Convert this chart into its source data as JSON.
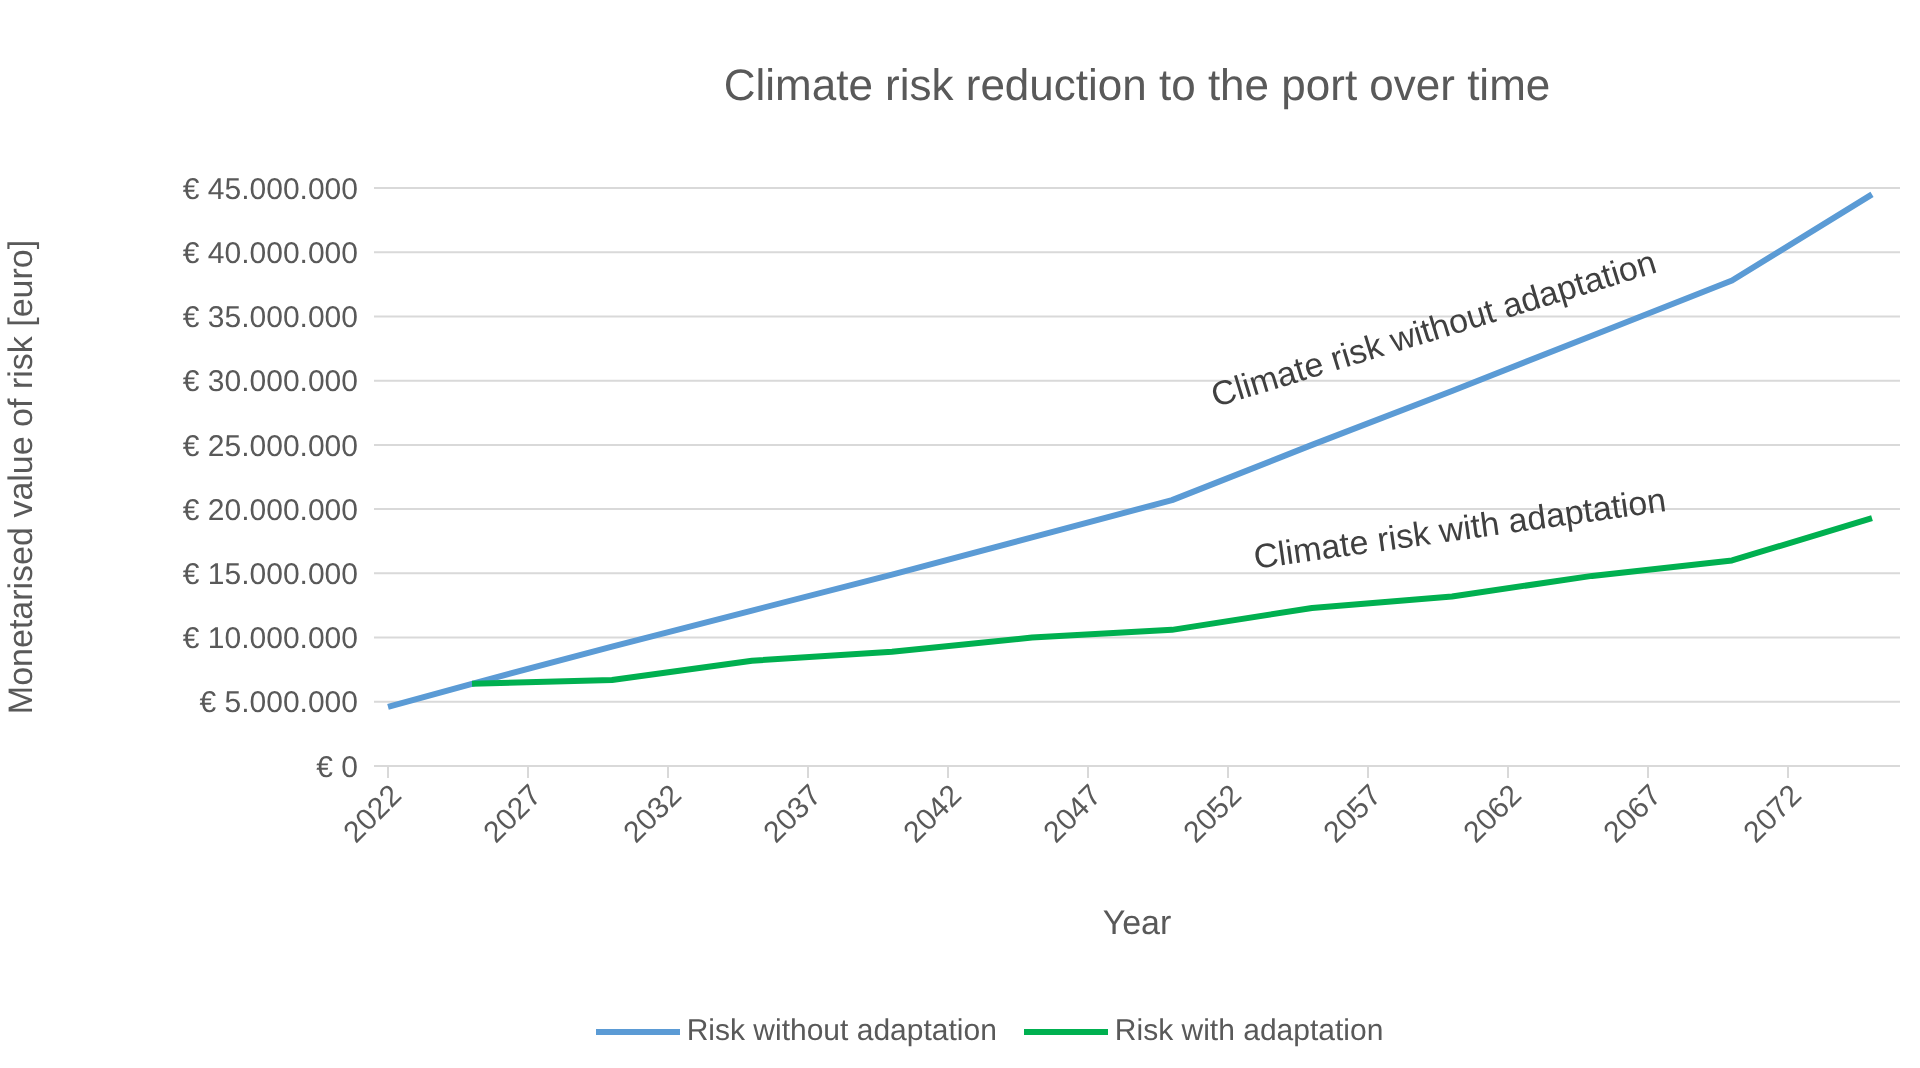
{
  "chart_data": {
    "type": "line",
    "title": "Climate risk reduction to the port over time",
    "xlabel": "Year",
    "ylabel": "Monetarised value of risk [euro]",
    "xlim": [
      2021.5,
      2076
    ],
    "xticks": [
      2022,
      2027,
      2032,
      2037,
      2042,
      2047,
      2052,
      2057,
      2062,
      2067,
      2072
    ],
    "ylim": [
      0,
      45000000
    ],
    "yticks": [
      {
        "value": 0,
        "label": "€ 0"
      },
      {
        "value": 5000000,
        "label": "€ 5.000.000"
      },
      {
        "value": 10000000,
        "label": "€ 10.000.000"
      },
      {
        "value": 15000000,
        "label": "€ 15.000.000"
      },
      {
        "value": 20000000,
        "label": "€ 20.000.000"
      },
      {
        "value": 25000000,
        "label": "€ 25.000.000"
      },
      {
        "value": 30000000,
        "label": "€ 30.000.000"
      },
      {
        "value": 35000000,
        "label": "€ 35.000.000"
      },
      {
        "value": 40000000,
        "label": "€ 40.000.000"
      },
      {
        "value": 45000000,
        "label": "€ 45.000.000"
      }
    ],
    "grid": "y",
    "legend": "bottom",
    "marker": "none",
    "line_style": "solid",
    "series": [
      {
        "name": "Risk without adaptation",
        "color": "#5b9bd5",
        "x": [
          2022,
          2025,
          2030,
          2035,
          2040,
          2045,
          2050,
          2055,
          2060,
          2065,
          2070,
          2075
        ],
        "values": [
          4600000,
          6400000,
          9300000,
          12100000,
          14900000,
          17800000,
          20700000,
          25000000,
          29200000,
          33500000,
          37800000,
          44500000
        ]
      },
      {
        "name": "Risk with adaptation",
        "color": "#00b050",
        "x": [
          2025,
          2030,
          2035,
          2040,
          2045,
          2050,
          2055,
          2060,
          2065,
          2070,
          2075
        ],
        "values": [
          6400000,
          6700000,
          8200000,
          8900000,
          10000000,
          10600000,
          12300000,
          13200000,
          14800000,
          16000000,
          19300000
        ]
      }
    ],
    "annotations": [
      "Climate risk without adaptation",
      "Climate risk with adaptation"
    ]
  }
}
